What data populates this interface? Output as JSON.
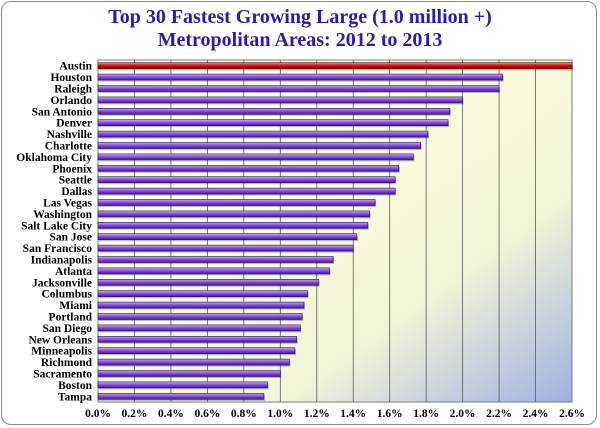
{
  "chart_data": {
    "type": "bar",
    "orientation": "horizontal",
    "title_line1": "Top 30 Fastest Growing Large (1.0 million +)",
    "title_line2": "Metropolitan Areas: 2012 to 2013",
    "categories": [
      "Austin",
      "Houston",
      "Raleigh",
      "Orlando",
      "San Antonio",
      "Denver",
      "Nashville",
      "Charlotte",
      "Oklahoma City",
      "Phoenix",
      "Seattle",
      "Dallas",
      "Las Vegas",
      "Washington",
      "Salt Lake City",
      "San Jose",
      "San Francisco",
      "Indianapolis",
      "Atlanta",
      "Jacksonville",
      "Columbus",
      "Miami",
      "Portland",
      "San Diego",
      "New Orleans",
      "Minneapolis",
      "Richmond",
      "Sacramento",
      "Boston",
      "Tampa"
    ],
    "values": [
      2.6,
      2.22,
      2.2,
      2.0,
      1.93,
      1.92,
      1.81,
      1.77,
      1.73,
      1.65,
      1.63,
      1.63,
      1.52,
      1.49,
      1.48,
      1.42,
      1.4,
      1.29,
      1.27,
      1.21,
      1.15,
      1.13,
      1.12,
      1.11,
      1.09,
      1.08,
      1.05,
      1.0,
      0.93,
      0.91
    ],
    "highlight": "Austin",
    "xlim": [
      0.0,
      2.6
    ],
    "xticks": [
      "0.0%",
      "0.2%",
      "0.4%",
      "0.6%",
      "0.8%",
      "1.0%",
      "1.2%",
      "1.4%",
      "1.6%",
      "1.8%",
      "2.0%",
      "2.2%",
      "2.4%",
      "2.6%"
    ],
    "xlabel": "",
    "ylabel": "",
    "grid": true,
    "legend": "none",
    "colors": {
      "bar": "#8a52e8",
      "bar_dark": "#3f1a86",
      "highlight_bar": "#e01010",
      "highlight_dark": "#7a0000",
      "title": "#2a1bb0",
      "plot_bg_light": "#fffde0",
      "plot_bg_dark": "#9fb1e2",
      "gridline": "#5a5a5a"
    }
  }
}
